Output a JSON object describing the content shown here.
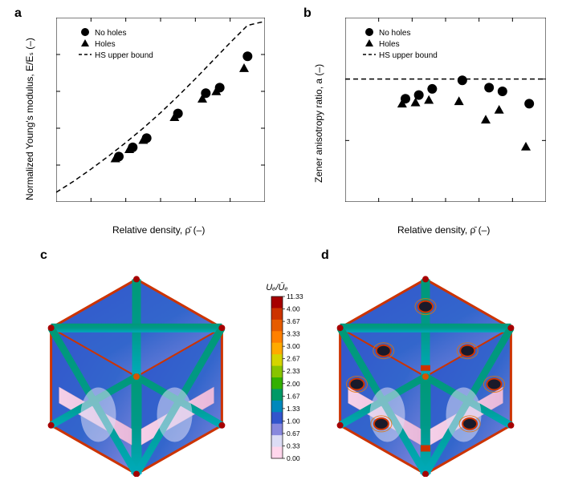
{
  "panel_labels": {
    "a": "a",
    "b": "b",
    "c": "c",
    "d": "d"
  },
  "font_family": "Arial, Helvetica, sans-serif",
  "panel_label_fontsize": 16,
  "axis_label_fontsize": 12,
  "tick_label_fontsize": 10,
  "legend_fontsize": 10,
  "colorbar_tick_fontsize": 9,
  "background_color": "#ffffff",
  "axis_color": "#000000",
  "panel_a": {
    "type": "scatter",
    "x_label": "Relative density, ρ̄ (–)",
    "y_label": "Normalized Young's modulus, E/Eₛ (–)",
    "xlim": [
      0.05,
      0.65
    ],
    "ylim": [
      0.0,
      0.5
    ],
    "xticks": [
      0.05,
      0.15,
      0.25,
      0.35,
      0.45,
      0.55,
      0.65
    ],
    "yticks": [
      0.0,
      0.1,
      0.2,
      0.3,
      0.4,
      0.5
    ],
    "series": [
      {
        "name": "No holes",
        "marker": "circle",
        "color": "#000000",
        "size": 6,
        "x": [
          0.23,
          0.27,
          0.31,
          0.4,
          0.48,
          0.52,
          0.6
        ],
        "y": [
          0.123,
          0.148,
          0.173,
          0.24,
          0.295,
          0.31,
          0.395
        ]
      },
      {
        "name": "Holes",
        "marker": "triangle",
        "color": "#000000",
        "size": 6,
        "x": [
          0.22,
          0.26,
          0.3,
          0.39,
          0.47,
          0.51,
          0.59
        ],
        "y": [
          0.118,
          0.143,
          0.168,
          0.23,
          0.28,
          0.3,
          0.363
        ]
      }
    ],
    "curve": {
      "name": "HS upper bound",
      "style": "dashed",
      "color": "#000000",
      "width": 1.5,
      "dash": "6 4",
      "x": [
        0.05,
        0.1,
        0.15,
        0.2,
        0.25,
        0.3,
        0.35,
        0.4,
        0.45,
        0.5,
        0.55,
        0.6,
        0.65
      ],
      "y": [
        0.026,
        0.056,
        0.089,
        0.124,
        0.161,
        0.2,
        0.242,
        0.287,
        0.334,
        0.383,
        0.432,
        0.479,
        0.49
      ]
    },
    "legend_items": [
      "No holes",
      "Holes",
      "HS upper bound"
    ]
  },
  "panel_b": {
    "type": "scatter",
    "x_label": "Relative density, ρ̄ (–)",
    "y_label": "Zener anisotropy ratio, a (–)",
    "xlim": [
      0.05,
      0.65
    ],
    "ylim": [
      0.9,
      1.05
    ],
    "xticks": [
      0.05,
      0.15,
      0.25,
      0.35,
      0.45,
      0.55,
      0.65
    ],
    "yticks": [
      0.9,
      0.95,
      1.0,
      1.05
    ],
    "series": [
      {
        "name": "No holes",
        "marker": "circle",
        "color": "#000000",
        "size": 6,
        "x": [
          0.23,
          0.27,
          0.31,
          0.4,
          0.48,
          0.52,
          0.6
        ],
        "y": [
          0.984,
          0.987,
          0.992,
          0.999,
          0.993,
          0.99,
          0.98
        ]
      },
      {
        "name": "Holes",
        "marker": "triangle",
        "color": "#000000",
        "size": 6,
        "x": [
          0.22,
          0.26,
          0.3,
          0.39,
          0.47,
          0.51,
          0.59
        ],
        "y": [
          0.98,
          0.981,
          0.983,
          0.982,
          0.967,
          0.975,
          0.945
        ]
      }
    ],
    "curve": {
      "name": "HS upper bound",
      "style": "dashed",
      "color": "#000000",
      "width": 1.5,
      "dash": "6 4",
      "x": [
        0.05,
        0.65
      ],
      "y": [
        1.0,
        1.0
      ]
    },
    "legend_items": [
      "No holes",
      "Holes",
      "HS upper bound"
    ]
  },
  "panel_c": {
    "type": "simulation",
    "description": "3D lattice unit cell (no holes) with strain-energy density contour"
  },
  "panel_d": {
    "type": "simulation",
    "description": "3D lattice unit cell (with holes) with strain-energy density contour"
  },
  "colorbar": {
    "title": "Uₑ/Ūₑ",
    "ticks": [
      "11.33",
      "4.00",
      "3.67",
      "3.33",
      "3.00",
      "2.67",
      "2.33",
      "2.00",
      "1.67",
      "1.33",
      "1.00",
      "0.67",
      "0.33",
      "0.00"
    ],
    "colors": [
      "#a60000",
      "#cc3300",
      "#e65c00",
      "#ff8000",
      "#ffaa00",
      "#d4d400",
      "#88c400",
      "#33b000",
      "#009966",
      "#0088bb",
      "#3355cc",
      "#8888dd",
      "#dcdcf5",
      "#ffd6ec"
    ]
  }
}
